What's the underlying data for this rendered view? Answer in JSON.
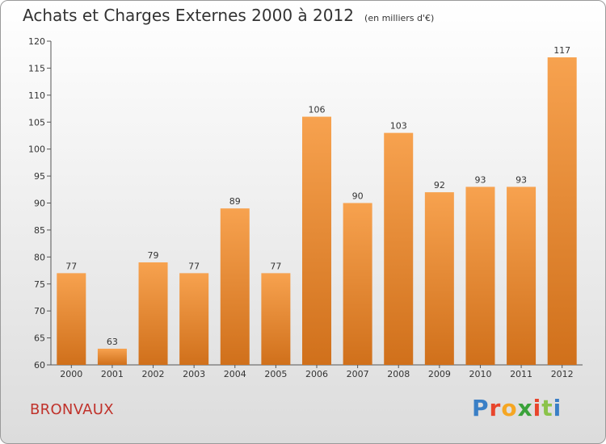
{
  "header": {
    "title": "Achats et Charges Externes 2000 à 2012",
    "unit": "(en milliers d'€)"
  },
  "footer": {
    "commune": "BRONVAUX",
    "logo_text": "Proxiti",
    "logo_colors": [
      "#3a7fc6",
      "#e8452c",
      "#f5a623",
      "#3aa23a",
      "#e8452c",
      "#8bc34a",
      "#3a7fc6"
    ]
  },
  "chart_data": {
    "type": "bar",
    "title": "Achats et Charges Externes 2000 à 2012",
    "subtitle": "(en milliers d'€)",
    "xlabel": "",
    "ylabel": "",
    "categories": [
      "2000",
      "2001",
      "2002",
      "2003",
      "2004",
      "2005",
      "2006",
      "2007",
      "2008",
      "2009",
      "2010",
      "2011",
      "2012"
    ],
    "values": [
      77,
      63,
      79,
      77,
      89,
      77,
      106,
      90,
      103,
      92,
      93,
      93,
      117
    ],
    "data_labels": [
      "77",
      "63",
      "79",
      "77",
      "89",
      "77",
      "106",
      "90",
      "103",
      "92",
      "93",
      "93",
      "117"
    ],
    "ylim": [
      60,
      120
    ],
    "yticks": [
      60,
      65,
      70,
      75,
      80,
      85,
      90,
      95,
      100,
      105,
      110,
      115,
      120
    ],
    "grid": false,
    "bar_color_top": "#f7a24f",
    "bar_color_bottom": "#d0701b"
  }
}
